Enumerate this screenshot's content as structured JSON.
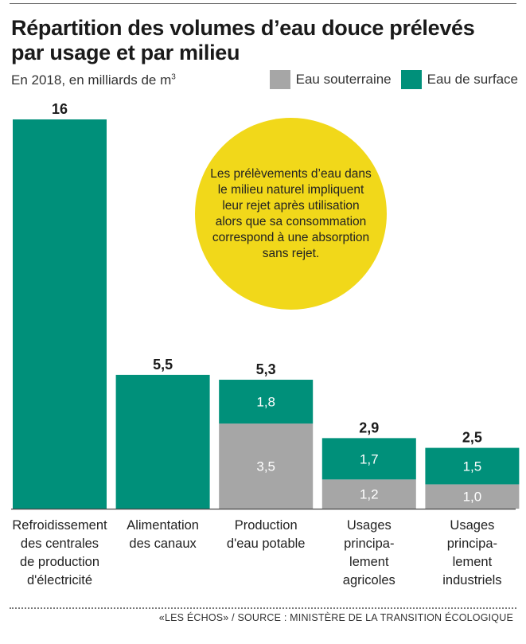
{
  "header": {
    "title": "Répartition des volumes d’eau douce prélevés par usage et par milieu",
    "subtitle": "En 2018, en milliards de m",
    "subtitle_sup": "3"
  },
  "legend": [
    {
      "label": "Eau souterraine",
      "color": "#a6a6a6"
    },
    {
      "label": "Eau de surface",
      "color": "#00907a"
    }
  ],
  "note": "Les prélèvements d’eau dans le milieu naturel impliquent leur rejet après utilisation alors que sa consommation correspond à une absorption sans rejet.",
  "source": "«LES ÉCHOS» / SOURCE : MINISTÈRE DE LA TRANSITION ÉCOLOGIQUE",
  "chart_data": {
    "type": "bar",
    "stacked": true,
    "categories": [
      [
        "Refroidissement",
        "des centrales",
        "de production",
        "d'électricité"
      ],
      [
        "Alimentation",
        "des canaux"
      ],
      [
        "Production",
        "d'eau potable"
      ],
      [
        "Usages",
        "principa-",
        "lement",
        "agricoles"
      ],
      [
        "Usages",
        "principa-",
        "lement",
        "industriels"
      ]
    ],
    "series": [
      {
        "name": "Eau souterraine",
        "color": "#a6a6a6",
        "values": [
          0,
          0,
          3.5,
          1.2,
          1.0
        ],
        "labels": [
          "",
          "",
          "3,5",
          "1,2",
          "1,0"
        ]
      },
      {
        "name": "Eau de surface",
        "color": "#00907a",
        "values": [
          16,
          5.5,
          1.8,
          1.7,
          1.5
        ],
        "labels": [
          "",
          "",
          "1,8",
          "1,7",
          "1,5"
        ]
      }
    ],
    "totals": [
      16,
      5.5,
      5.3,
      2.9,
      2.5
    ],
    "total_labels": [
      "16",
      "5,5",
      "5,3",
      "2,9",
      "2,5"
    ],
    "ylim": [
      0,
      16
    ],
    "grid": false,
    "legend_position": "top-right"
  }
}
